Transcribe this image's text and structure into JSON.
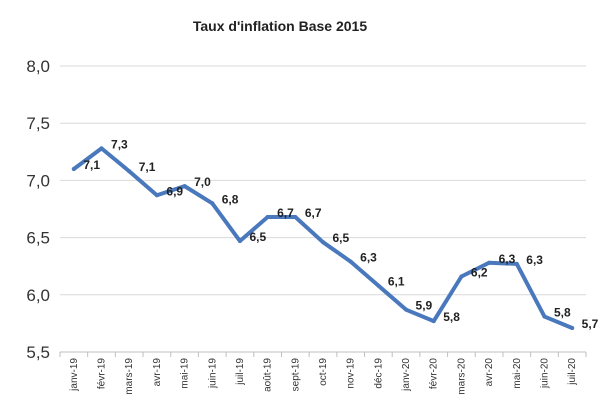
{
  "chart_data": {
    "type": "line",
    "title": "Taux d'inflation Base 2015",
    "xlabel": "",
    "ylabel": "",
    "ylim": [
      5.5,
      8.0
    ],
    "yticks": [
      "8,0",
      "7,5",
      "7,0",
      "6,5",
      "6,0",
      "5,5"
    ],
    "ytick_values": [
      8.0,
      7.5,
      7.0,
      6.5,
      6.0,
      5.5
    ],
    "grid": true,
    "legend": "none",
    "colors": {
      "line": "#4A78BC",
      "grid": "#d9d9d9",
      "axis": "#bfbfbf"
    },
    "categories": [
      "janv-19",
      "févr-19",
      "mars-19",
      "avr-19",
      "mai-19",
      "juin-19",
      "juil-19",
      "août-19",
      "sept-19",
      "oct-19",
      "nov-19",
      "déc-19",
      "janv-20",
      "févr-20",
      "mars-20",
      "avr-20",
      "mai-20",
      "juin-20",
      "juil-20"
    ],
    "values": [
      7.1,
      7.28,
      7.08,
      6.87,
      6.95,
      6.8,
      6.47,
      6.68,
      6.68,
      6.46,
      6.29,
      6.08,
      5.87,
      5.77,
      6.16,
      6.28,
      6.27,
      5.81,
      5.71
    ],
    "data_labels": [
      {
        "index": 1,
        "text": "7,1"
      },
      {
        "index": 2,
        "text": "7,3"
      },
      {
        "index": 3,
        "text": "7,1"
      },
      {
        "index": 4,
        "text": "6,9"
      },
      {
        "index": 5,
        "text": "7,0"
      },
      {
        "index": 6,
        "text": "6,8"
      },
      {
        "index": 7,
        "text": "6,5"
      },
      {
        "index": 8,
        "text": "6,7"
      },
      {
        "index": 9,
        "text": "6,7"
      },
      {
        "index": 10,
        "text": "6,5"
      },
      {
        "index": 11,
        "text": "6,3"
      },
      {
        "index": 12,
        "text": "6,1"
      },
      {
        "index": 13,
        "text": "5,9"
      },
      {
        "index": 14,
        "text": "5,8"
      },
      {
        "index": 15,
        "text": "6,2"
      },
      {
        "index": 16,
        "text": "6,3"
      },
      {
        "index": 17,
        "text": "6,3"
      },
      {
        "index": 18,
        "text": "5,8"
      },
      {
        "index": 19,
        "text": "5,7"
      }
    ]
  }
}
